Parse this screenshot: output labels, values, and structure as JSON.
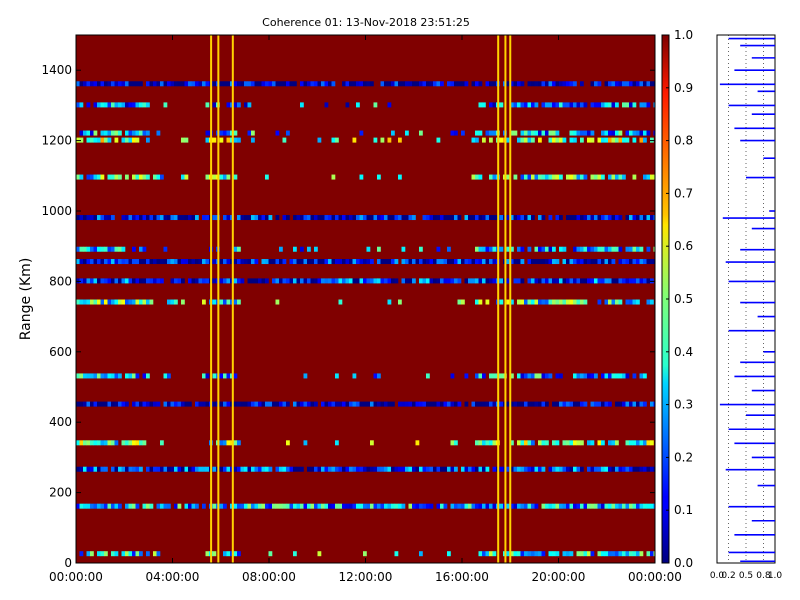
{
  "chart_data": [
    {
      "type": "heatmap",
      "title": "Coherence 01: 13-Nov-2018 23:51:25",
      "xlabel": "",
      "ylabel": "Range (Km)",
      "xlim": [
        "00:00:00",
        "00:00:00"
      ],
      "ylim": [
        0,
        1500
      ],
      "x_ticks": [
        "00:00:00",
        "04:00:00",
        "08:00:00",
        "12:00:00",
        "16:00:00",
        "20:00:00",
        "00:00:00"
      ],
      "y_ticks": [
        0,
        200,
        400,
        600,
        800,
        1000,
        1200,
        1400
      ],
      "background_value": 1.0,
      "vertical_stripes_hours": [
        5.6,
        5.9,
        6.5,
        17.5,
        17.8,
        18.0
      ],
      "bands": [
        {
          "range_km": 1360,
          "value": 0.05,
          "extent": "full"
        },
        {
          "range_km": 1300,
          "value": 0.25,
          "extent": "partial"
        },
        {
          "range_km": 1220,
          "value": 0.3,
          "extent": "partial"
        },
        {
          "range_km": 1200,
          "value": 0.5,
          "extent": "partial"
        },
        {
          "range_km": 1095,
          "value": 0.4,
          "extent": "partial"
        },
        {
          "range_km": 980,
          "value": 0.1,
          "extent": "full"
        },
        {
          "range_km": 890,
          "value": 0.3,
          "extent": "partial"
        },
        {
          "range_km": 855,
          "value": 0.1,
          "extent": "full"
        },
        {
          "range_km": 800,
          "value": 0.15,
          "extent": "full"
        },
        {
          "range_km": 740,
          "value": 0.4,
          "extent": "partial"
        },
        {
          "range_km": 530,
          "value": 0.3,
          "extent": "partial"
        },
        {
          "range_km": 450,
          "value": 0.05,
          "extent": "full"
        },
        {
          "range_km": 340,
          "value": 0.45,
          "extent": "partial"
        },
        {
          "range_km": 265,
          "value": 0.15,
          "extent": "full"
        },
        {
          "range_km": 160,
          "value": 0.3,
          "extent": "full"
        },
        {
          "range_km": 25,
          "value": 0.35,
          "extent": "partial"
        }
      ]
    },
    {
      "type": "colorbar",
      "range": [
        0.0,
        1.0
      ],
      "ticks": [
        "0.0",
        "0.1",
        "0.2",
        "0.3",
        "0.4",
        "0.5",
        "0.6",
        "0.7",
        "0.8",
        "0.9",
        "1.0"
      ]
    },
    {
      "type": "line",
      "x_ticks": [
        "0.0",
        "0.2",
        "0.5",
        "0.8",
        "1.0"
      ],
      "xlim": [
        0,
        1
      ],
      "ylim": [
        0,
        1500
      ],
      "profile": [
        {
          "range_km": 1490,
          "value": 0.2
        },
        {
          "range_km": 1470,
          "value": 0.4
        },
        {
          "range_km": 1435,
          "value": 0.6
        },
        {
          "range_km": 1400,
          "value": 0.3
        },
        {
          "range_km": 1360,
          "value": 0.05
        },
        {
          "range_km": 1340,
          "value": 0.7
        },
        {
          "range_km": 1300,
          "value": 0.2
        },
        {
          "range_km": 1275,
          "value": 0.6
        },
        {
          "range_km": 1235,
          "value": 0.3
        },
        {
          "range_km": 1200,
          "value": 0.4
        },
        {
          "range_km": 1150,
          "value": 0.8
        },
        {
          "range_km": 1095,
          "value": 0.5
        },
        {
          "range_km": 1000,
          "value": 0.9
        },
        {
          "range_km": 980,
          "value": 0.1
        },
        {
          "range_km": 950,
          "value": 0.6
        },
        {
          "range_km": 890,
          "value": 0.4
        },
        {
          "range_km": 855,
          "value": 0.15
        },
        {
          "range_km": 800,
          "value": 0.2
        },
        {
          "range_km": 740,
          "value": 0.4
        },
        {
          "range_km": 700,
          "value": 0.7
        },
        {
          "range_km": 660,
          "value": 0.2
        },
        {
          "range_km": 600,
          "value": 0.8
        },
        {
          "range_km": 570,
          "value": 0.4
        },
        {
          "range_km": 530,
          "value": 0.3
        },
        {
          "range_km": 490,
          "value": 0.6
        },
        {
          "range_km": 450,
          "value": 0.05
        },
        {
          "range_km": 420,
          "value": 0.5
        },
        {
          "range_km": 380,
          "value": 0.2
        },
        {
          "range_km": 340,
          "value": 0.3
        },
        {
          "range_km": 300,
          "value": 0.6
        },
        {
          "range_km": 265,
          "value": 0.15
        },
        {
          "range_km": 220,
          "value": 0.7
        },
        {
          "range_km": 160,
          "value": 0.2
        },
        {
          "range_km": 120,
          "value": 0.6
        },
        {
          "range_km": 80,
          "value": 0.3
        },
        {
          "range_km": 30,
          "value": 0.2
        },
        {
          "range_km": 5,
          "value": 0.4
        }
      ]
    }
  ]
}
